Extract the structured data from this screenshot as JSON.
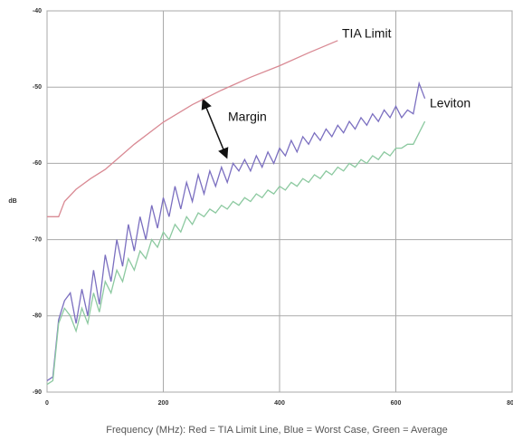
{
  "chart_data": {
    "type": "line",
    "xlabel": "Frequency (MHz): Red = TIA Limit Line, Blue = Worst Case, Green = Average",
    "ylabel": "dB",
    "annotations": [
      "TIA Limit",
      "Leviton",
      "Margin"
    ],
    "xlim": [
      0,
      800
    ],
    "xticks": [
      0,
      200,
      400,
      600,
      800
    ],
    "ylim": [
      -90,
      -40
    ],
    "yticks": [
      -40,
      -50,
      -60,
      -70,
      -80,
      -90
    ],
    "grid": true,
    "series": [
      {
        "name": "TIA Limit Line",
        "color": "#d98a94",
        "x": [
          0,
          10,
          20,
          30,
          50,
          75,
          100,
          150,
          200,
          250,
          300,
          350,
          400,
          450,
          500
        ],
        "values": [
          -67,
          -67,
          -67,
          -65,
          -63.4,
          -62,
          -60.8,
          -57.5,
          -54.6,
          -52.3,
          -50.4,
          -48.7,
          -47.2,
          -45.5,
          -43.9
        ]
      },
      {
        "name": "Worst Case",
        "color": "#7b6fc0",
        "x": [
          0,
          10,
          20,
          30,
          40,
          50,
          60,
          70,
          80,
          90,
          100,
          110,
          120,
          130,
          140,
          150,
          160,
          170,
          180,
          190,
          200,
          210,
          220,
          230,
          240,
          250,
          260,
          270,
          280,
          290,
          300,
          310,
          320,
          330,
          340,
          350,
          360,
          370,
          380,
          390,
          400,
          410,
          420,
          430,
          440,
          450,
          460,
          470,
          480,
          490,
          500,
          510,
          520,
          530,
          540,
          550,
          560,
          570,
          580,
          590,
          600,
          610,
          620,
          630,
          640,
          650
        ],
        "values": [
          -88.5,
          -88,
          -80.5,
          -78,
          -77,
          -81,
          -76.5,
          -80,
          -74,
          -78.5,
          -72,
          -75.5,
          -70,
          -73.5,
          -68,
          -71.5,
          -67,
          -70,
          -65.5,
          -68.5,
          -64.5,
          -67,
          -63,
          -66,
          -62.5,
          -65,
          -61.5,
          -64,
          -61,
          -63,
          -60.5,
          -62.5,
          -60,
          -61,
          -59.5,
          -61,
          -59,
          -60.5,
          -58.5,
          -60,
          -58,
          -59,
          -57,
          -58.5,
          -56.5,
          -57.5,
          -56,
          -57,
          -55.5,
          -56.5,
          -55,
          -56,
          -54.5,
          -55.5,
          -54,
          -55,
          -53.5,
          -54.5,
          -53,
          -54,
          -52.5,
          -54,
          -53,
          -53.5,
          -49.5,
          -51.5
        ]
      },
      {
        "name": "Average",
        "color": "#8cc9a0",
        "x": [
          0,
          10,
          20,
          30,
          40,
          50,
          60,
          70,
          80,
          90,
          100,
          110,
          120,
          130,
          140,
          150,
          160,
          170,
          180,
          190,
          200,
          210,
          220,
          230,
          240,
          250,
          260,
          270,
          280,
          290,
          300,
          310,
          320,
          330,
          340,
          350,
          360,
          370,
          380,
          390,
          400,
          410,
          420,
          430,
          440,
          450,
          460,
          470,
          480,
          490,
          500,
          510,
          520,
          530,
          540,
          550,
          560,
          570,
          580,
          590,
          600,
          610,
          620,
          630,
          640,
          650
        ],
        "values": [
          -89,
          -88.5,
          -81,
          -79,
          -80,
          -82,
          -79,
          -81,
          -77,
          -79.5,
          -75.5,
          -77,
          -74,
          -75.5,
          -72.5,
          -74,
          -71.5,
          -72.5,
          -70,
          -71,
          -69,
          -70,
          -68,
          -69,
          -67,
          -68,
          -66.5,
          -67,
          -66,
          -66.5,
          -65.5,
          -66,
          -65,
          -65.5,
          -64.5,
          -65,
          -64,
          -64.5,
          -63.5,
          -64,
          -63,
          -63.5,
          -62.5,
          -63,
          -62,
          -62.5,
          -61.5,
          -62,
          -61,
          -61.5,
          -60.5,
          -61,
          -60,
          -60.5,
          -59.5,
          -60,
          -59,
          -59.5,
          -58.5,
          -59,
          -58,
          -58,
          -57.5,
          -57.5,
          -56,
          -54.5
        ]
      }
    ]
  }
}
